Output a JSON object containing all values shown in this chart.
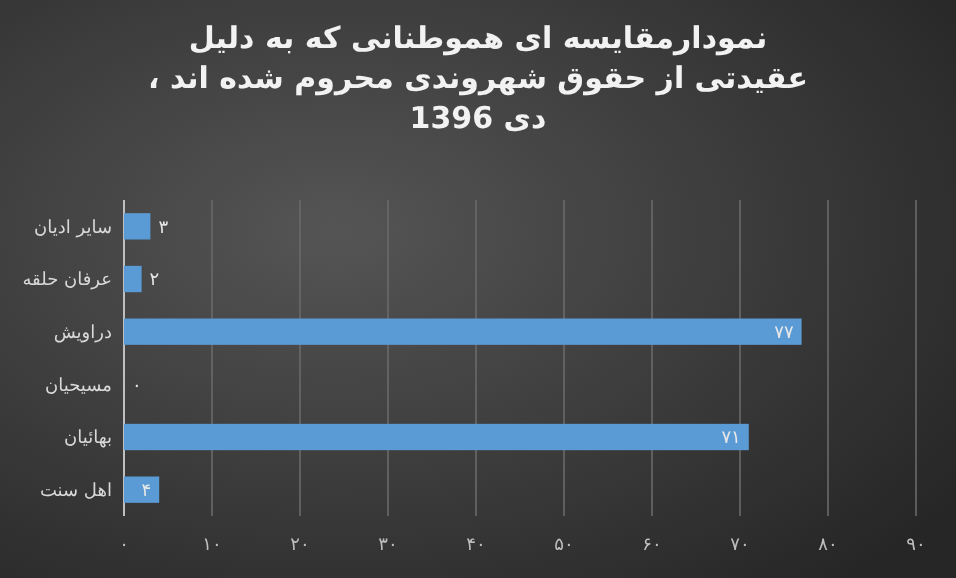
{
  "chart_data": {
    "type": "bar",
    "orientation": "horizontal",
    "title": "نمودارمقایسه ای هموطنانی که به دلیل\nعقیدتی از حقوق شهروندی محروم  شده اند ،\nدی 1396",
    "categories": [
      "سایر ادیان",
      "عرفان حلقه",
      "دراویش",
      "مسیحیان",
      "بهائیان",
      "اهل سنت"
    ],
    "values": [
      3,
      2,
      77,
      0,
      71,
      4
    ],
    "value_labels": [
      "۳",
      "۲",
      "۷۷",
      "۰",
      "۷۱",
      "۴"
    ],
    "color": "#5b9bd5",
    "xlim": [
      0,
      90
    ],
    "xticks": [
      {
        "value": 0,
        "label": "۰"
      },
      {
        "value": 10,
        "label": "۱۰"
      },
      {
        "value": 20,
        "label": "۲۰"
      },
      {
        "value": 30,
        "label": "۳۰"
      },
      {
        "value": 40,
        "label": "۴۰"
      },
      {
        "value": 50,
        "label": "۵۰"
      },
      {
        "value": 60,
        "label": "۶۰"
      },
      {
        "value": 70,
        "label": "۷۰"
      },
      {
        "value": 80,
        "label": "۸۰"
      },
      {
        "value": 90,
        "label": "۹۰"
      }
    ],
    "grid": "x"
  }
}
